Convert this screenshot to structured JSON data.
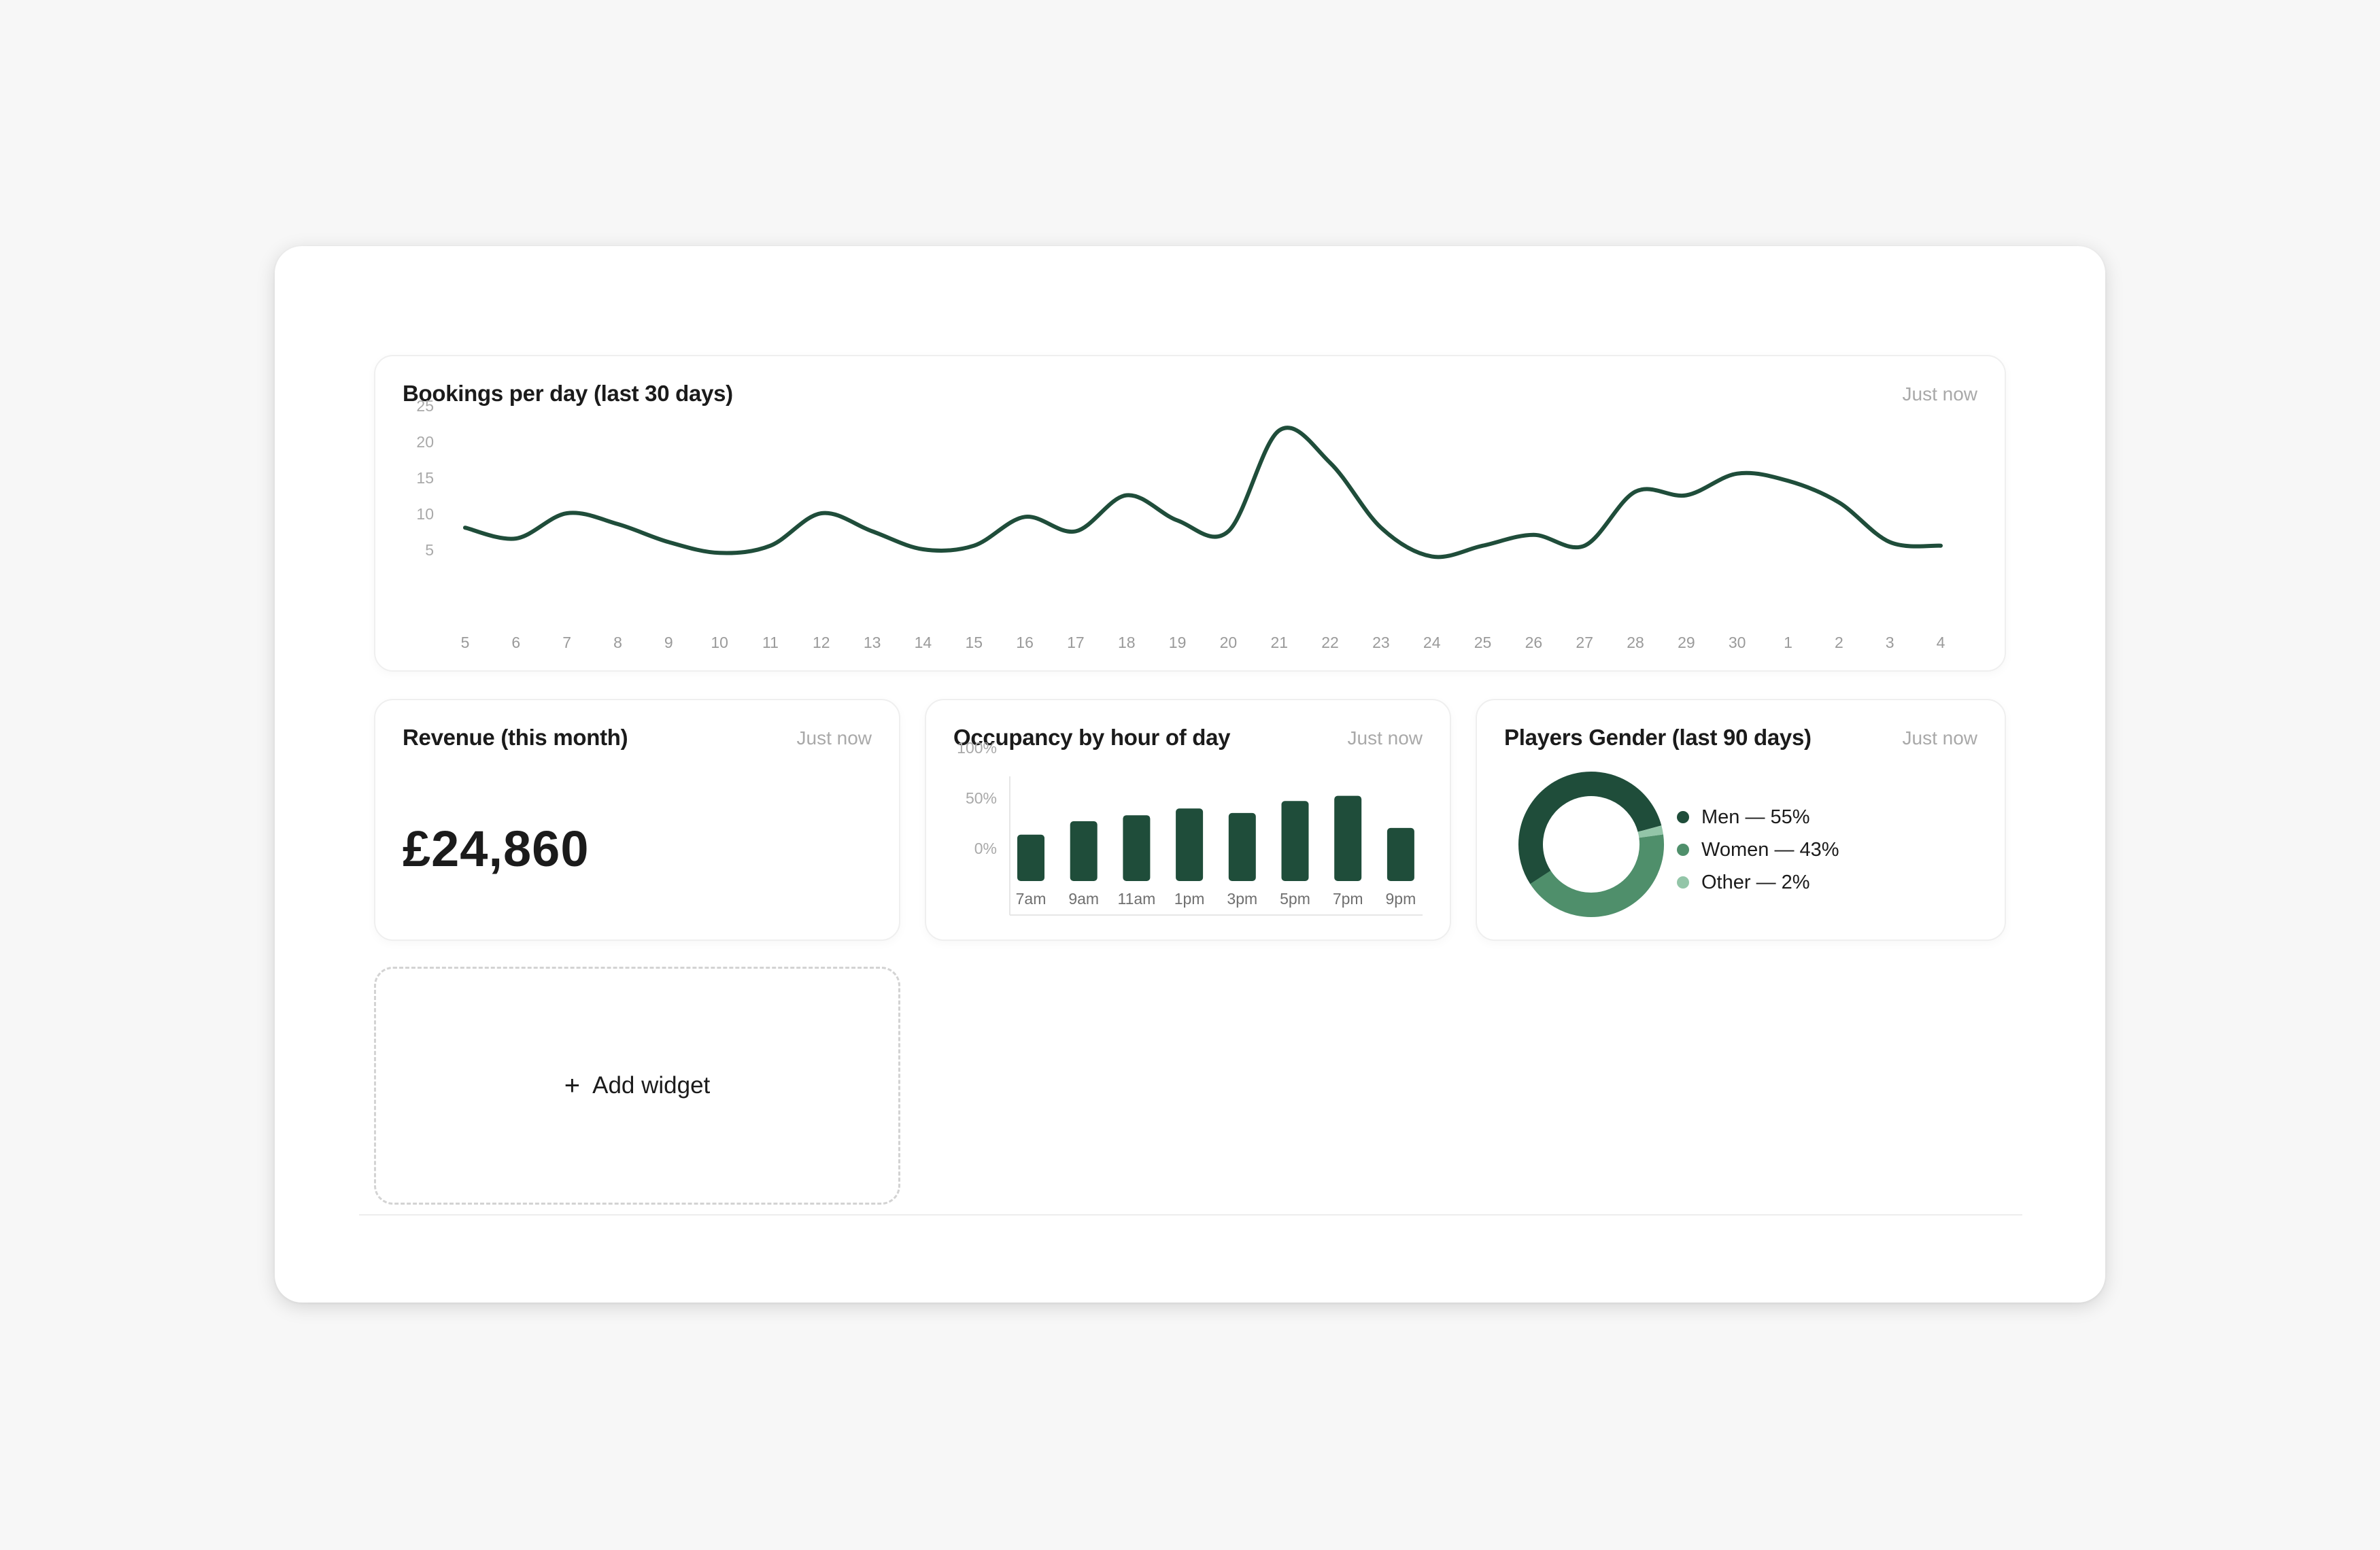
{
  "colors": {
    "primary": "#1f4d3a",
    "secondary": "#4f8f6b",
    "tertiary": "#93c5a8"
  },
  "bookings": {
    "title": "Bookings per day (last 30 days)",
    "updated": "Just now"
  },
  "revenue": {
    "title": "Revenue (this month)",
    "updated": "Just now",
    "value": "£24,860"
  },
  "occupancy": {
    "title": "Occupancy by hour of day",
    "updated": "Just now"
  },
  "gender": {
    "title": "Players Gender (last 90 days)",
    "updated": "Just now"
  },
  "add_widget": {
    "plus": "+",
    "label": "Add widget"
  },
  "chart_data": [
    {
      "type": "line",
      "name": "bookings",
      "x": [
        "5",
        "6",
        "7",
        "8",
        "9",
        "10",
        "11",
        "12",
        "13",
        "14",
        "15",
        "16",
        "17",
        "18",
        "19",
        "20",
        "21",
        "22",
        "23",
        "24",
        "25",
        "26",
        "27",
        "28",
        "29",
        "30",
        "1",
        "2",
        "3",
        "4"
      ],
      "values": [
        8,
        6.5,
        10,
        8.5,
        6,
        4.5,
        5.5,
        10,
        7.5,
        5,
        5.5,
        9.5,
        7.5,
        12.5,
        9,
        7.5,
        21.5,
        17,
        8,
        4,
        5.5,
        7,
        5.5,
        13,
        12.5,
        15.5,
        14.5,
        11.5,
        6,
        5.5
      ],
      "yticks": [
        5,
        10,
        15,
        20,
        25
      ],
      "ylim": [
        0,
        25
      ],
      "smooth": true
    },
    {
      "type": "bar",
      "name": "occupancy",
      "categories": [
        "7am",
        "9am",
        "11am",
        "1pm",
        "3pm",
        "5pm",
        "7pm",
        "9pm"
      ],
      "values": [
        62,
        80,
        88,
        97,
        91,
        107,
        114,
        71
      ],
      "yticks": [
        "100%",
        "50%",
        "0%"
      ],
      "ylim": [
        0,
        120
      ]
    },
    {
      "type": "pie",
      "name": "gender",
      "donut": true,
      "slices": [
        {
          "label": "Men — 55%",
          "value": 55,
          "color": "#1f4d3a"
        },
        {
          "label": "Women — 43%",
          "value": 43,
          "color": "#4f8f6b"
        },
        {
          "label": "Other — 2%",
          "value": 2,
          "color": "#93c5a8"
        }
      ]
    }
  ]
}
